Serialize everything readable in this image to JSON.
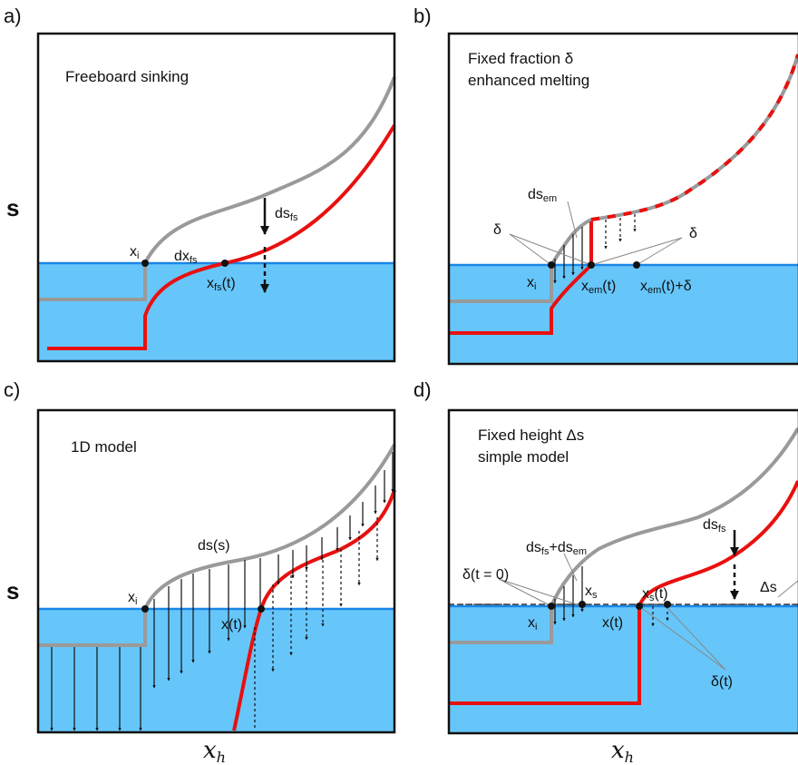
{
  "panels": {
    "a": {
      "label": "a)",
      "title_lines": [
        "Freeboard sinking"
      ],
      "annotations": {
        "xi": "x",
        "xi_sub": "i",
        "ds": "ds",
        "ds_sub": "fs",
        "dx": "dx",
        "dx_sub": "fs",
        "xfs_pre": "x",
        "xfs_sub": "fs",
        "xfs_post": "(t)"
      }
    },
    "b": {
      "label": "b)",
      "title_lines": [
        "Fixed fraction  δ",
        "enhanced melting"
      ],
      "annotations": {
        "ds": "ds",
        "ds_sub": "em",
        "delta_left": "δ",
        "delta_right": "δ",
        "xi": "x",
        "xi_sub": "i",
        "xem_pre": "x",
        "xem_sub": "em",
        "xem_post": "(t)",
        "xem2_pre": "x",
        "xem2_sub": "em",
        "xem2_post": "(t)+δ"
      }
    },
    "c": {
      "label": "c)",
      "title_lines": [
        "1D model"
      ],
      "annotations": {
        "dss": "ds(s)",
        "xi": "x",
        "xi_sub": "i",
        "xt": "x(t)"
      }
    },
    "d": {
      "label": "d)",
      "title_lines": [
        "Fixed height  Δs",
        "simple model"
      ],
      "annotations": {
        "dsfs": "ds",
        "dsfs_sub": "fs",
        "dsfsem_a": "ds",
        "dsfsem_a_sub": "fs",
        "dsfsem_b": "+ds",
        "dsfsem_b_sub": "em",
        "delta0": "δ(t = 0)",
        "xs": "x",
        "xs_sub": "s",
        "xst_pre": "x",
        "xst_sub": "s",
        "xst_post": "(t)",
        "xi": "x",
        "xi_sub": "i",
        "xt": "x(t)",
        "deltat": "δ(t)",
        "Deltas": "Δs"
      }
    }
  },
  "axes": {
    "x_label_a": "x",
    "x_label_sub": "h",
    "y_label": "s"
  },
  "colors": {
    "water": "#66c6fa",
    "waterline": "#1a86e6",
    "initial_profile": "#9a9a9a",
    "current_profile": "#e8100f",
    "frame": "#111111"
  }
}
